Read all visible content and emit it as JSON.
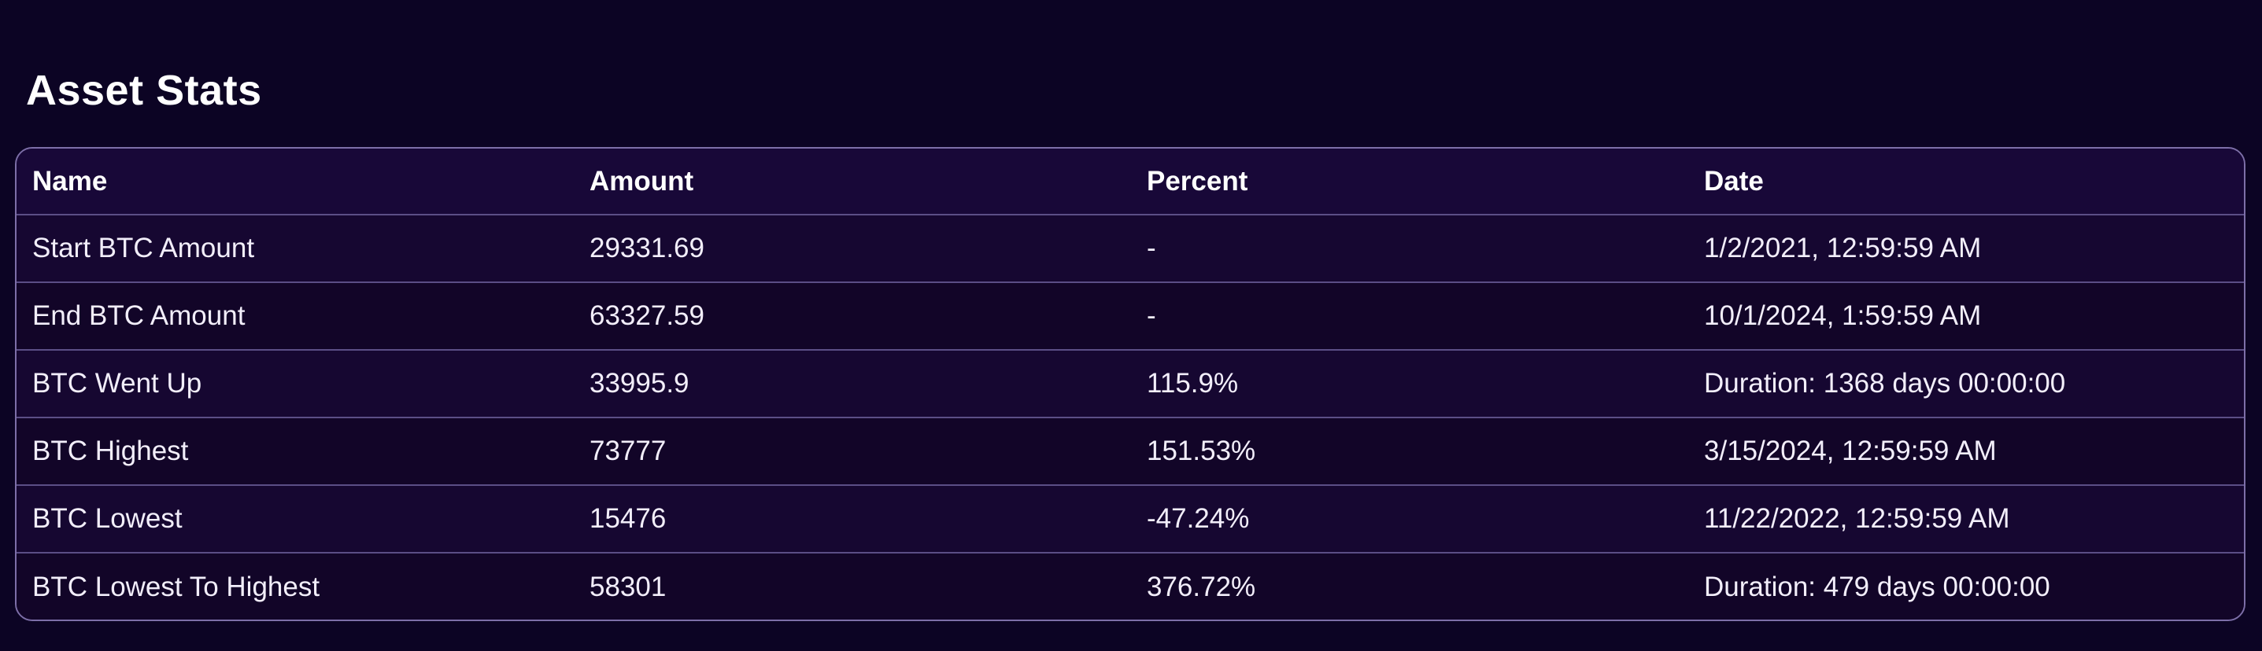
{
  "page": {
    "title": "Asset Stats"
  },
  "table": {
    "headers": [
      "Name",
      "Amount",
      "Percent",
      "Date"
    ],
    "rows": [
      [
        "Start BTC Amount",
        "29331.69",
        "-",
        "1/2/2021, 12:59:59 AM"
      ],
      [
        "End BTC Amount",
        "63327.59",
        "-",
        "10/1/2024, 1:59:59 AM"
      ],
      [
        "BTC Went Up",
        "33995.9",
        "115.9%",
        "Duration: 1368 days 00:00:00"
      ],
      [
        "BTC Highest",
        "73777",
        "151.53%",
        "3/15/2024, 12:59:59 AM"
      ],
      [
        "BTC Lowest",
        "15476",
        "-47.24%",
        "11/22/2022, 12:59:59 AM"
      ],
      [
        "BTC Lowest To Highest",
        "58301",
        "376.72%",
        "Duration: 479 days 00:00:00"
      ]
    ]
  },
  "colors": {
    "background": "#0c0424",
    "table_border": "#7d6fa8",
    "row_divider": "#5b4e86",
    "text": "#ffffff"
  }
}
